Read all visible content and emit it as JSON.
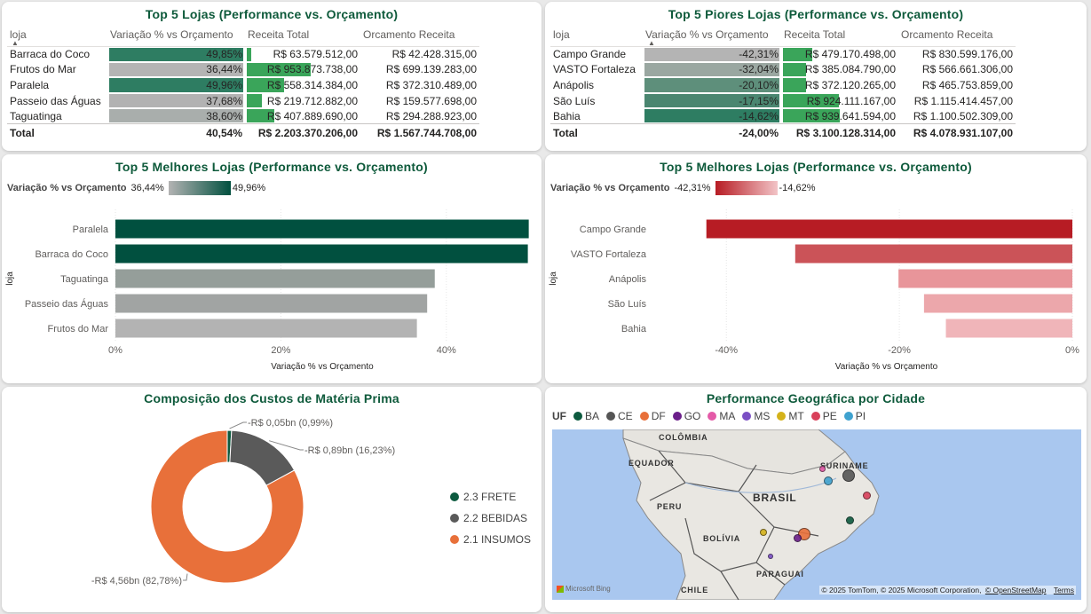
{
  "top_best_table": {
    "title": "Top 5 Lojas (Performance vs. Orçamento)",
    "columns": [
      "loja",
      "Variação % vs Orçamento",
      "Receita Total",
      "Orcamento Receita"
    ],
    "rows": [
      {
        "loja": "Barraca do Coco",
        "var": "49,85%",
        "receita": "R$ 63.579.512,00",
        "orcamento": "R$ 42.428.315,00",
        "var_color": "#2e7d62",
        "receita_fill": 0.07
      },
      {
        "loja": "Frutos do Mar",
        "var": "36,44%",
        "receita": "R$ 953.873.738,00",
        "orcamento": "R$ 699.139.283,00",
        "var_color": "#b4b4b4",
        "receita_fill": 1.0
      },
      {
        "loja": "Paralela",
        "var": "49,96%",
        "receita": "R$ 558.314.384,00",
        "orcamento": "R$ 372.310.489,00",
        "var_color": "#2e7d62",
        "receita_fill": 0.59
      },
      {
        "loja": "Passeio das Águas",
        "var": "37,68%",
        "receita": "R$ 219.712.882,00",
        "orcamento": "R$ 159.577.698,00",
        "var_color": "#b2b2b2",
        "receita_fill": 0.23
      },
      {
        "loja": "Taguatinga",
        "var": "38,60%",
        "receita": "R$ 407.889.690,00",
        "orcamento": "R$ 294.288.923,00",
        "var_color": "#a9aeac",
        "receita_fill": 0.43
      }
    ],
    "total": {
      "label": "Total",
      "var": "40,54%",
      "receita": "R$ 2.203.370.206,00",
      "orcamento": "R$ 1.567.744.708,00"
    }
  },
  "top_worst_table": {
    "title": "Top 5 Piores Lojas (Performance vs. Orçamento)",
    "columns": [
      "loja",
      "Variação % vs Orçamento",
      "Receita Total",
      "Orcamento Receita"
    ],
    "rows": [
      {
        "loja": "Campo Grande",
        "var": "-42,31%",
        "receita": "R$ 479.170.498,00",
        "orcamento": "R$ 830.599.176,00",
        "var_color": "#b4b4b4",
        "receita_fill": 0.51
      },
      {
        "loja": "VASTO Fortaleza",
        "var": "-32,04%",
        "receita": "R$ 385.084.790,00",
        "orcamento": "R$ 566.661.306,00",
        "var_color": "#9aa7a1",
        "receita_fill": 0.41
      },
      {
        "loja": "Anápolis",
        "var": "-20,10%",
        "receita": "R$ 372.120.265,00",
        "orcamento": "R$ 465.753.859,00",
        "var_color": "#5e8f7b",
        "receita_fill": 0.4
      },
      {
        "loja": "São Luís",
        "var": "-17,15%",
        "receita": "R$ 924.111.167,00",
        "orcamento": "R$ 1.115.414.457,00",
        "var_color": "#4a8670",
        "receita_fill": 0.98
      },
      {
        "loja": "Bahia",
        "var": "-14,62%",
        "receita": "R$ 939.641.594,00",
        "orcamento": "R$ 1.100.502.309,00",
        "var_color": "#2e7d62",
        "receita_fill": 1.0
      }
    ],
    "total": {
      "label": "Total",
      "var": "-24,00%",
      "receita": "R$ 3.100.128.314,00",
      "orcamento": "R$ 4.078.931.107,00"
    }
  },
  "best_chart": {
    "title": "Top 5 Melhores Lojas (Performance vs. Orçamento)",
    "legend_label": "Variação % vs Orçamento",
    "legend_min": "36,44%",
    "legend_max": "49,96%"
  },
  "worst_chart": {
    "title": "Top 5 Melhores Lojas (Performance vs. Orçamento)",
    "legend_label": "Variação % vs Orçamento",
    "legend_min": "-42,31%",
    "legend_max": "-14,62%"
  },
  "chart_data": [
    {
      "type": "bar",
      "orientation": "horizontal",
      "title": "Top 5 Melhores Lojas (Performance vs. Orçamento)",
      "ylabel": "loja",
      "xlabel": "Variação % vs Orçamento",
      "categories": [
        "Paralela",
        "Barraca do Coco",
        "Taguatinga",
        "Passeio das Águas",
        "Frutos do Mar"
      ],
      "values": [
        49.96,
        49.85,
        38.6,
        37.68,
        36.44
      ],
      "colors": [
        "#01503f",
        "#01503f",
        "#959e9a",
        "#a1a4a3",
        "#b3b3b3"
      ],
      "xlim": [
        0,
        50
      ],
      "xticks": [
        0,
        20,
        40
      ],
      "xtick_labels": [
        "0%",
        "20%",
        "40%"
      ]
    },
    {
      "type": "bar",
      "orientation": "horizontal",
      "title": "Top 5 Melhores Lojas (Performance vs. Orçamento)",
      "ylabel": "loja",
      "xlabel": "Variação % vs Orçamento",
      "categories": [
        "Campo Grande",
        "VASTO Fortaleza",
        "Anápolis",
        "São Luís",
        "Bahia"
      ],
      "values": [
        -42.31,
        -32.04,
        -20.1,
        -17.15,
        -14.62
      ],
      "colors": [
        "#b71c24",
        "#cb5358",
        "#e8959a",
        "#eca7ab",
        "#f0b5b9"
      ],
      "xlim": [
        -43,
        0
      ],
      "xticks": [
        -40,
        -20,
        0
      ],
      "xtick_labels": [
        "-40%",
        "-20%",
        "0%"
      ]
    },
    {
      "type": "pie",
      "subtype": "donut",
      "title": "Composição dos Custos de Matéria Prima",
      "categories": [
        "2.3 FRETE",
        "2.2 BEBIDAS",
        "2.1 INSUMOS"
      ],
      "values": [
        0.05,
        0.89,
        4.56
      ],
      "percents": [
        0.99,
        16.23,
        82.78
      ],
      "labels": [
        "-R$ 0,05bn (0,99%)",
        "-R$ 0,89bn (16,23%)",
        "-R$ 4,56bn (82,78%)"
      ],
      "colors": [
        "#0d5a3f",
        "#5a5a5a",
        "#e8703a"
      ],
      "legend_position": "right"
    }
  ],
  "donut_card": {
    "title": "Composição dos Custos de Matéria Prima"
  },
  "map_card": {
    "title": "Performance Geográfica por Cidade",
    "legend_title": "UF",
    "legend": [
      {
        "code": "BA",
        "color": "#0d5a3f"
      },
      {
        "code": "CE",
        "color": "#555555"
      },
      {
        "code": "DF",
        "color": "#e8703a"
      },
      {
        "code": "GO",
        "color": "#6b1f8a"
      },
      {
        "code": "MA",
        "color": "#e45aa8"
      },
      {
        "code": "MS",
        "color": "#7b4fc4"
      },
      {
        "code": "MT",
        "color": "#d4b21a"
      },
      {
        "code": "PE",
        "color": "#d9405a"
      },
      {
        "code": "PI",
        "color": "#3fa2cf"
      }
    ],
    "places": [
      "COLÔMBIA",
      "SURINAME",
      "EQUADOR",
      "PERU",
      "BRASIL",
      "BOLÍVIA",
      "PARAGUAI",
      "CHILE"
    ],
    "attribution": "© 2025 TomTom, © 2025 Microsoft Corporation,",
    "osm": "© OpenStreetMap",
    "terms": "Terms",
    "bing": "Microsoft Bing"
  }
}
